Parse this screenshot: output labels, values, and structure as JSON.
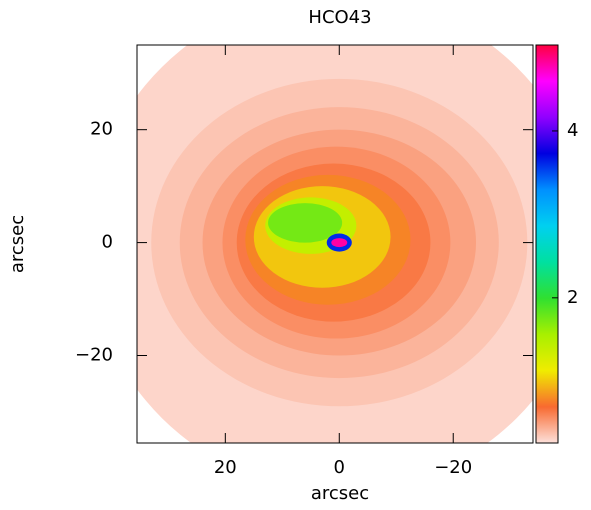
{
  "chart_data": {
    "type": "contourf",
    "title": "HCO43",
    "xlabel": "arcsec",
    "ylabel": "arcsec",
    "xlim": [
      35.5,
      -34
    ],
    "ylim": [
      -35.5,
      35
    ],
    "xticks": [
      20,
      0,
      {
        "value": -20,
        "label": "−20"
      }
    ],
    "yticks": [
      {
        "value": -20,
        "label": "−20"
      },
      0,
      20
    ],
    "clim": [
      0.26,
      5.03
    ],
    "cticks": [
      2,
      4
    ],
    "colormap": [
      "#fde0da",
      "#f86a30",
      "#f0ec00",
      "#a8f000",
      "#30e030",
      "#00e0a0",
      "#00d0f0",
      "#0090ff",
      "#0000e0",
      "#9000ff",
      "#ff00ff",
      "#ff0040"
    ],
    "levels": [
      {
        "value": 0.3,
        "cx": 0,
        "cy": 0,
        "rx": 44,
        "ry": 44
      },
      {
        "value": 0.36,
        "cx": 0,
        "cy": 0,
        "rx": 33,
        "ry": 29
      },
      {
        "value": 0.42,
        "cx": 0,
        "cy": 0,
        "rx": 28,
        "ry": 24
      },
      {
        "value": 0.49,
        "cx": 0,
        "cy": 0,
        "rx": 24,
        "ry": 20
      },
      {
        "value": 0.56,
        "cx": 0.5,
        "cy": 0,
        "rx": 20,
        "ry": 17
      },
      {
        "value": 0.64,
        "cx": 1,
        "cy": 0,
        "rx": 17,
        "ry": 14
      },
      {
        "value": 0.78,
        "cx": 2,
        "cy": 0.5,
        "rx": 14.5,
        "ry": 11.5
      },
      {
        "value": 1.0,
        "cx": 3,
        "cy": 1,
        "rx": 12,
        "ry": 9
      },
      {
        "value": 1.4,
        "cx": 5,
        "cy": 3,
        "rx": 8,
        "ry": 5
      },
      {
        "value": 1.75,
        "cx": 6,
        "cy": 3.5,
        "rx": 6.5,
        "ry": 3.5
      },
      {
        "value": 3.6,
        "cx": 0,
        "cy": 0,
        "rx": 2.2,
        "ry": 1.6
      },
      {
        "value": 4.8,
        "cx": 0,
        "cy": 0,
        "rx": 1.4,
        "ry": 0.8
      }
    ]
  }
}
